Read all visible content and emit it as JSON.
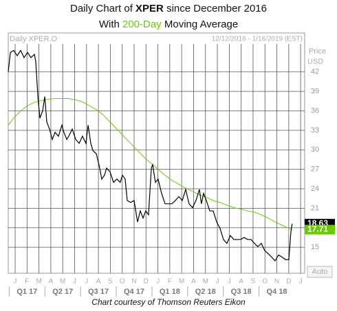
{
  "chart_data": {
    "type": "line",
    "title": [
      "Daily Chart of",
      "XPER",
      "since December 2016"
    ],
    "subtitle": [
      "With",
      "200-Day",
      "Moving Average"
    ],
    "symbol": "Daily XPER.O",
    "date_range": "12/12/2016 - 1/16/2019 (EST)",
    "y_axis_label": [
      "Price",
      "USD"
    ],
    "button": "Auto",
    "footer": "Chart courtesy of Thomson Reuters Eikon",
    "xlim": [
      -0.58,
      24.34
    ],
    "xticks": [
      {
        "value": 0,
        "label": "J"
      },
      {
        "value": 1,
        "label": "F"
      },
      {
        "value": 2,
        "label": "M"
      },
      {
        "value": 3,
        "label": "A"
      },
      {
        "value": 4,
        "label": "M"
      },
      {
        "value": 5,
        "label": "J"
      },
      {
        "value": 6,
        "label": "J"
      },
      {
        "value": 7,
        "label": "A"
      },
      {
        "value": 8,
        "label": "S"
      },
      {
        "value": 9,
        "label": "O"
      },
      {
        "value": 10,
        "label": "N"
      },
      {
        "value": 11,
        "label": "D"
      },
      {
        "value": 12,
        "label": "J"
      },
      {
        "value": 13,
        "label": "F"
      },
      {
        "value": 14,
        "label": "M"
      },
      {
        "value": 15,
        "label": "A"
      },
      {
        "value": 16,
        "label": "M"
      },
      {
        "value": 17,
        "label": "J"
      },
      {
        "value": 18,
        "label": "J"
      },
      {
        "value": 19,
        "label": "A"
      },
      {
        "value": 20,
        "label": "S"
      },
      {
        "value": 21,
        "label": "O"
      },
      {
        "value": 22,
        "label": "N"
      },
      {
        "value": 23,
        "label": "D"
      },
      {
        "value": 24,
        "label": "J"
      }
    ],
    "quarters": [
      "Q1 17",
      "Q2 17",
      "Q3 17",
      "Q4 17",
      "Q1 18",
      "Q2 18",
      "Q3 18",
      "Q4 18"
    ],
    "ylim": [
      11,
      48
    ],
    "yticks": [
      15,
      18,
      21,
      24,
      27,
      30,
      33,
      36,
      39,
      42
    ],
    "grid": true,
    "series": [
      {
        "name": "XPER.O",
        "color": "#000000",
        "x": [
          -0.58,
          -0.4,
          -0.12,
          0.17,
          0.46,
          0.75,
          1.04,
          1.33,
          1.62,
          1.73,
          1.91,
          2.08,
          2.31,
          2.49,
          2.66,
          2.89,
          3.12,
          3.35,
          3.64,
          3.93,
          4.1,
          4.34,
          4.51,
          4.8,
          5.09,
          5.38,
          5.66,
          5.95,
          6.13,
          6.36,
          6.53,
          6.82,
          7.11,
          7.28,
          7.51,
          7.69,
          7.98,
          8.27,
          8.55,
          8.84,
          9.02,
          9.25,
          9.42,
          9.71,
          10.0,
          10.29,
          10.52,
          10.75,
          10.98,
          11.21,
          11.45,
          11.56,
          11.79,
          12.02,
          12.31,
          12.6,
          12.89,
          13.18,
          13.47,
          13.76,
          14.05,
          14.34,
          14.62,
          14.91,
          15.2,
          15.49,
          15.66,
          15.84,
          16.07,
          16.36,
          16.65,
          16.94,
          17.23,
          17.51,
          17.8,
          18.09,
          18.38,
          18.67,
          18.96,
          19.25,
          19.54,
          19.83,
          20.12,
          20.4,
          20.69,
          20.98,
          21.27,
          21.56,
          21.85,
          22.14,
          22.43,
          22.72,
          23.01,
          23.18,
          23.29
        ],
        "values": [
          42.0,
          45.0,
          45.3,
          44.5,
          45.3,
          44.2,
          45.0,
          44.2,
          44.7,
          43.6,
          38.2,
          34.9,
          36.0,
          38.2,
          34.3,
          33.2,
          31.6,
          32.7,
          32.1,
          33.8,
          32.7,
          31.6,
          32.1,
          33.2,
          31.6,
          31.0,
          32.1,
          31.0,
          33.8,
          31.0,
          29.9,
          29.4,
          27.2,
          25.5,
          26.1,
          27.2,
          26.6,
          25.0,
          25.5,
          25.0,
          26.1,
          25.5,
          22.2,
          21.9,
          22.2,
          18.9,
          20.6,
          19.5,
          20.6,
          20.0,
          27.2,
          27.7,
          25.0,
          25.5,
          23.3,
          21.7,
          21.7,
          21.7,
          22.2,
          22.8,
          22.2,
          23.9,
          21.7,
          21.1,
          22.2,
          23.9,
          21.7,
          23.3,
          22.2,
          20.6,
          20.6,
          18.9,
          17.9,
          16.2,
          15.6,
          16.8,
          16.2,
          16.2,
          16.2,
          16.5,
          16.2,
          16.2,
          15.6,
          15.1,
          15.6,
          14.5,
          14.0,
          13.5,
          12.9,
          13.8,
          13.5,
          13.1,
          13.1,
          17.3,
          18.63
        ]
      },
      {
        "name": "200-Day",
        "color": "#66cc00",
        "x": [
          -0.58,
          -0.12,
          0.46,
          1.04,
          1.62,
          2.2,
          2.77,
          3.35,
          3.93,
          4.51,
          5.09,
          5.66,
          6.24,
          6.82,
          7.4,
          7.98,
          8.55,
          9.13,
          9.71,
          10.29,
          10.87,
          11.45,
          12.02,
          12.6,
          13.18,
          13.76,
          14.34,
          14.91,
          15.49,
          16.07,
          16.65,
          17.23,
          17.8,
          18.38,
          18.96,
          19.54,
          20.12,
          20.69,
          21.27,
          21.85,
          22.43,
          23.01,
          23.29
        ],
        "values": [
          33.8,
          34.9,
          36.0,
          36.8,
          37.3,
          37.6,
          37.8,
          37.9,
          37.9,
          37.9,
          37.7,
          37.4,
          36.8,
          36.2,
          35.4,
          34.3,
          33.2,
          32.1,
          31.0,
          29.9,
          28.8,
          27.9,
          27.0,
          26.1,
          25.3,
          24.7,
          24.1,
          23.6,
          23.1,
          22.7,
          22.2,
          21.9,
          21.5,
          21.1,
          20.9,
          20.6,
          20.4,
          20.0,
          19.5,
          18.9,
          18.4,
          17.9,
          17.71
        ]
      }
    ]
  }
}
